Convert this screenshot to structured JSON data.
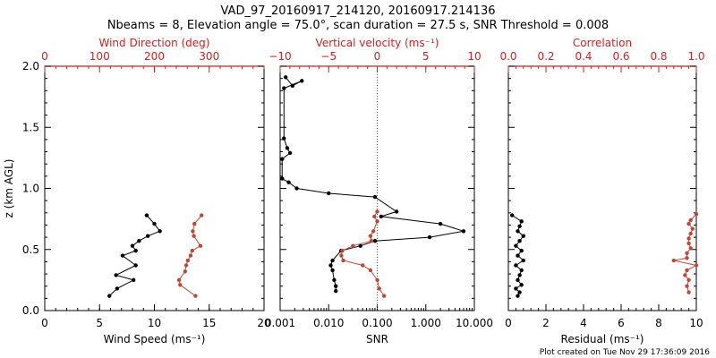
{
  "title": {
    "line1": "VAD_97_20160917_214120, 20160917.214136",
    "line2": "Nbeams = 8, Elevation angle = 75.0°, scan duration = 27.5 s, SNR Threshold = 0.008"
  },
  "footer": "Plot created on Tue Nov 29 17:36:09 2016",
  "colors": {
    "primary": "#000000",
    "secondary": "#cc2222",
    "secondary_points": "#b84a3c"
  },
  "chart_data": [
    {
      "id": "wind",
      "type": "line",
      "ylabel": "z (km AGL)",
      "ylim": [
        0,
        2.0
      ],
      "yticks": [
        0.0,
        0.5,
        1.0,
        1.5,
        2.0
      ],
      "ytick_labels": [
        "0.0",
        "0.5",
        "1.0",
        "1.5",
        "2.0"
      ],
      "bottom_axis": {
        "label": "Wind Speed (ms⁻¹)",
        "range": [
          0,
          20
        ],
        "ticks": [
          0,
          5,
          10,
          15,
          20
        ],
        "tick_labels": [
          "0",
          "5",
          "10",
          "15",
          "20"
        ]
      },
      "top_axis": {
        "label": "Wind Direction (deg)",
        "range": [
          0,
          400
        ],
        "ticks": [
          0,
          100,
          200,
          300
        ],
        "tick_labels": [
          "0",
          "100",
          "200",
          "300"
        ]
      },
      "series": [
        {
          "name": "Wind Speed",
          "axis": "bottom",
          "x": [
            9.3,
            10.0,
            10.5,
            9.4,
            8.6,
            8.0,
            8.3,
            7.1,
            8.3,
            6.5,
            8.1,
            6.6,
            5.9
          ],
          "y": [
            0.78,
            0.71,
            0.65,
            0.61,
            0.57,
            0.53,
            0.49,
            0.45,
            0.37,
            0.29,
            0.25,
            0.18,
            0.12
          ]
        },
        {
          "name": "Wind Direction",
          "axis": "top",
          "x": [
            286,
            273,
            270,
            272,
            284,
            269,
            266,
            261,
            258,
            256,
            245,
            247,
            275
          ],
          "y": [
            0.78,
            0.71,
            0.65,
            0.61,
            0.53,
            0.49,
            0.45,
            0.41,
            0.37,
            0.32,
            0.25,
            0.21,
            0.12
          ]
        }
      ]
    },
    {
      "id": "snr",
      "type": "line",
      "ylim": [
        0,
        2.0
      ],
      "bottom_axis": {
        "label": "SNR",
        "scale": "log",
        "range": [
          0.001,
          10.0
        ],
        "ticks": [
          0.001,
          0.01,
          0.1,
          1.0,
          10.0
        ],
        "tick_labels": [
          "0.001",
          "0.010",
          "0.100",
          "1.000",
          "10.000"
        ]
      },
      "top_axis": {
        "label": "Vertical velocity (ms⁻¹)",
        "range": [
          -10,
          10
        ],
        "ticks": [
          -10,
          -5,
          0,
          5,
          10
        ],
        "tick_labels": [
          "−10",
          "−5",
          "0",
          "5",
          "10"
        ]
      },
      "reference_line": {
        "axis": "top",
        "value": 0,
        "style": "dotted"
      },
      "series": [
        {
          "name": "SNR",
          "axis": "bottom",
          "x": [
            0.0013,
            0.0018,
            0.0028,
            0.0012,
            0.0012,
            0.0014,
            0.0016,
            0.0011,
            0.0011,
            0.0015,
            0.0022,
            0.01,
            0.09,
            0.25,
            0.12,
            2.0,
            6.0,
            1.2,
            0.09,
            0.045,
            0.018,
            0.012,
            0.011,
            0.012,
            0.013,
            0.014,
            0.014
          ],
          "y": [
            1.91,
            1.84,
            1.88,
            1.82,
            1.41,
            1.33,
            1.29,
            1.24,
            1.08,
            1.05,
            1.0,
            0.96,
            0.93,
            0.81,
            0.77,
            0.71,
            0.65,
            0.6,
            0.57,
            0.53,
            0.49,
            0.41,
            0.37,
            0.33,
            0.25,
            0.2,
            0.16
          ]
        },
        {
          "name": "Vertical velocity",
          "axis": "top",
          "x": [
            0.0,
            -0.3,
            0.0,
            -0.4,
            -0.7,
            -0.6,
            -2.5,
            -3.6,
            -3.7,
            -3.5,
            -1.5,
            -0.7,
            0.0,
            0.2,
            0.7
          ],
          "y": [
            0.81,
            0.77,
            0.73,
            0.65,
            0.61,
            0.57,
            0.53,
            0.49,
            0.45,
            0.41,
            0.37,
            0.33,
            0.25,
            0.18,
            0.12
          ]
        }
      ]
    },
    {
      "id": "residual",
      "type": "line",
      "ylim": [
        0,
        2.0
      ],
      "bottom_axis": {
        "label": "Residual (ms⁻¹)",
        "range": [
          0,
          10
        ],
        "ticks": [
          0,
          2,
          4,
          6,
          8,
          10
        ],
        "tick_labels": [
          "0",
          "2",
          "4",
          "6",
          "8",
          "10"
        ]
      },
      "top_axis": {
        "label": "Correlation",
        "range": [
          0,
          1.0
        ],
        "ticks": [
          0,
          0.2,
          0.4,
          0.6,
          0.8,
          1.0
        ],
        "tick_labels": [
          "0.0",
          "0.2",
          "0.4",
          "0.6",
          "0.8",
          "1.0"
        ]
      },
      "series": [
        {
          "name": "Residual",
          "axis": "bottom",
          "x": [
            0.2,
            0.7,
            0.6,
            0.5,
            0.8,
            0.6,
            0.4,
            0.7,
            0.5,
            0.8,
            0.4,
            0.7,
            0.6,
            0.5,
            0.7,
            0.4,
            0.6,
            0.5
          ],
          "y": [
            0.78,
            0.73,
            0.69,
            0.65,
            0.61,
            0.57,
            0.53,
            0.49,
            0.45,
            0.41,
            0.37,
            0.33,
            0.29,
            0.25,
            0.21,
            0.18,
            0.15,
            0.12
          ]
        },
        {
          "name": "Correlation",
          "axis": "top",
          "x": [
            1.0,
            0.97,
            0.96,
            0.98,
            0.97,
            0.96,
            0.96,
            0.97,
            0.95,
            0.95,
            0.88,
            1.0,
            0.95,
            0.94,
            0.96,
            0.95,
            0.96
          ],
          "y": [
            0.79,
            0.74,
            0.71,
            0.67,
            0.63,
            0.59,
            0.55,
            0.51,
            0.47,
            0.43,
            0.41,
            0.37,
            0.33,
            0.29,
            0.25,
            0.2,
            0.15
          ]
        }
      ]
    }
  ]
}
